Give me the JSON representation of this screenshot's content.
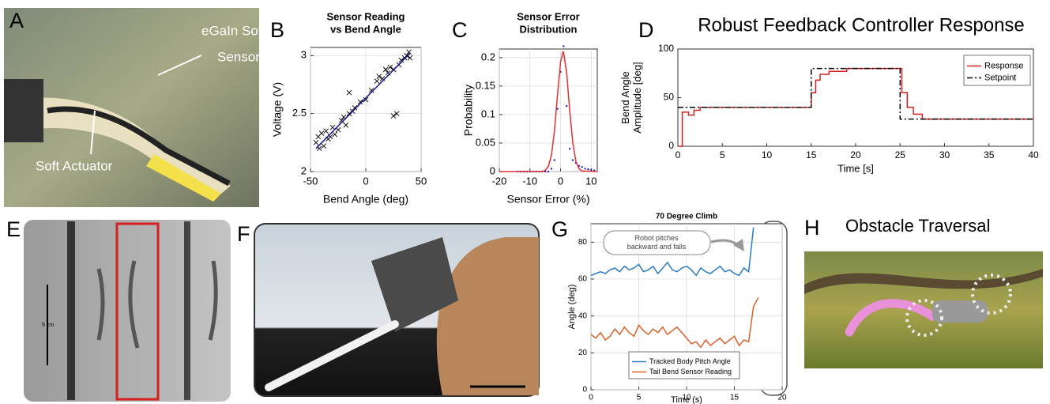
{
  "panel_labels": [
    "A",
    "B",
    "C",
    "D",
    "E",
    "F",
    "G",
    "H"
  ],
  "photo_a": {
    "sensor_label": [
      "eGaIn Soft",
      "Sensor"
    ],
    "actuator_label": "Soft Actuator"
  },
  "photo_e": {
    "scale_label": "5 cm"
  },
  "panel_h": {
    "title": "Obstacle Traversal"
  },
  "chart_data": [
    {
      "type": "scatter",
      "title": [
        "Sensor Reading",
        "vs Bend Angle"
      ],
      "xlabel": "Bend Angle (deg)",
      "ylabel": "Voltage (V)",
      "xlim": [
        -50,
        50
      ],
      "ylim": [
        2,
        3.07
      ],
      "xticks": [
        -50,
        0,
        50
      ],
      "yticks": [
        2,
        2.5,
        3
      ],
      "grid": true,
      "series": [
        {
          "color": "#000000",
          "marker": "x",
          "line": false,
          "x": [
            -45,
            -43,
            -42,
            -40,
            -38,
            -36,
            -34,
            -32,
            -30,
            -28,
            -25,
            -22,
            -20,
            -18,
            -15,
            -12,
            -10,
            -5,
            0,
            5,
            10,
            12,
            15,
            18,
            20,
            22,
            25,
            25,
            28,
            30,
            32,
            35,
            37,
            39,
            40,
            -15
          ],
          "values": [
            2.25,
            2.3,
            2.2,
            2.33,
            2.22,
            2.35,
            2.28,
            2.3,
            2.38,
            2.32,
            2.36,
            2.44,
            2.47,
            2.4,
            2.5,
            2.52,
            2.55,
            2.6,
            2.62,
            2.7,
            2.78,
            2.82,
            2.8,
            2.88,
            2.85,
            2.9,
            2.88,
            2.48,
            2.5,
            2.92,
            2.96,
            2.98,
            3.0,
            3.03,
            2.98,
            2.68
          ]
        },
        {
          "color": "#1a1a8c",
          "line": true,
          "x": [
            -45,
            40
          ],
          "values": [
            2.2,
            3.02
          ]
        }
      ]
    },
    {
      "type": "line",
      "title": [
        "Sensor Error",
        "Distribution"
      ],
      "xlabel": "Sensor Error (%)",
      "ylabel": "Probability",
      "xlim": [
        -20,
        12
      ],
      "ylim": [
        0,
        0.215
      ],
      "xticks": [
        -20,
        -10,
        0,
        10
      ],
      "yticks": [
        0,
        0.05,
        0.1,
        0.15,
        0.2
      ],
      "grid": true,
      "series": [
        {
          "color": "#2222cc",
          "marker": "dot",
          "line": false,
          "x": [
            -14,
            -13,
            -12,
            -11,
            -10,
            -9,
            -8,
            -7,
            -6,
            -5,
            -4,
            -3,
            -2,
            -1,
            0,
            1,
            2,
            3,
            4,
            5,
            6,
            7,
            8,
            9,
            10,
            11
          ],
          "values": [
            0,
            0,
            0,
            0,
            0,
            0,
            0,
            0,
            0,
            0,
            0,
            0.005,
            0.02,
            0.11,
            0.175,
            0.22,
            0.115,
            0.04,
            0.02,
            0.015,
            0.01,
            0.008,
            0.005,
            0.004,
            0.003,
            0.002
          ]
        },
        {
          "color": "#e03030",
          "line": true,
          "x": [
            -20,
            -6,
            -5,
            -4,
            -3,
            -2,
            -1,
            0,
            0.8,
            1,
            2,
            3,
            4,
            5,
            6,
            7,
            12
          ],
          "values": [
            0,
            0.0003,
            0.002,
            0.009,
            0.028,
            0.071,
            0.134,
            0.192,
            0.21,
            0.209,
            0.172,
            0.107,
            0.051,
            0.018,
            0.005,
            0.001,
            0
          ]
        }
      ]
    },
    {
      "type": "line",
      "title": "Robust Feedback Controller Response",
      "xlabel": "Time [s]",
      "ylabel": [
        "Bend Angle",
        "Amplitude [deg]"
      ],
      "xlim": [
        0,
        40
      ],
      "ylim": [
        0,
        100
      ],
      "xticks": [
        0,
        5,
        10,
        15,
        20,
        25,
        30,
        35,
        40
      ],
      "yticks": [
        0,
        50,
        100
      ],
      "grid": false,
      "legend": "upper right",
      "series": [
        {
          "name": "Response",
          "color": "#d62020",
          "line": true,
          "x": [
            0,
            0.5,
            0.5,
            1.2,
            1.2,
            1.8,
            1.8,
            2.5,
            2.5,
            15,
            15,
            15.5,
            15.5,
            16,
            16,
            17,
            17,
            19,
            19,
            25.2,
            25.2,
            25.8,
            25.8,
            26.5,
            26.5,
            27.5,
            27.5,
            40
          ],
          "values": [
            0,
            0,
            35,
            35,
            32,
            32,
            37,
            37,
            40,
            40,
            55,
            55,
            68,
            68,
            74,
            74,
            77,
            77,
            80,
            80,
            55,
            55,
            40,
            40,
            33,
            33,
            28,
            28
          ]
        },
        {
          "name": "Setpoint",
          "color": "#000000",
          "line": true,
          "dash": "dashdot",
          "x": [
            0,
            15,
            15,
            25,
            25,
            40
          ],
          "values": [
            40,
            40,
            80,
            80,
            28,
            28
          ]
        }
      ]
    },
    {
      "type": "line",
      "title": "70 Degree Climb",
      "xlabel": "Time (s)",
      "ylabel": "Angle (deg)",
      "xlim": [
        0,
        20
      ],
      "ylim": [
        0,
        90
      ],
      "xticks": [
        0,
        5,
        10,
        15,
        20
      ],
      "yticks": [
        0,
        20,
        40,
        60,
        80
      ],
      "grid": true,
      "legend": "lower left",
      "annotation": [
        "Robot pitches",
        "backward and falls"
      ],
      "series": [
        {
          "name": "Tracked Body Pitch Angle",
          "color": "#2a7bc0",
          "line": true,
          "x": [
            0,
            0.5,
            1,
            1.5,
            2,
            2.5,
            3,
            3.5,
            4,
            4.5,
            5,
            5.5,
            6,
            6.5,
            7,
            7.5,
            8,
            8.5,
            9,
            9.5,
            10,
            10.5,
            11,
            11.5,
            12,
            12.5,
            13,
            13.5,
            14,
            14.5,
            15,
            15.5,
            16,
            16.5,
            17
          ],
          "values": [
            62,
            63,
            64,
            63,
            65,
            66,
            64,
            67,
            65,
            66,
            68,
            64,
            65,
            67,
            63,
            66,
            69,
            65,
            64,
            66,
            67,
            65,
            62,
            66,
            64,
            63,
            65,
            67,
            64,
            65,
            63,
            62,
            66,
            64,
            88
          ]
        },
        {
          "name": "Tail Bend Sensor Reading",
          "color": "#d9622b",
          "line": true,
          "x": [
            0,
            0.5,
            1,
            1.5,
            2,
            2.5,
            3,
            3.5,
            4,
            4.5,
            5,
            5.5,
            6,
            6.5,
            7,
            7.5,
            8,
            8.5,
            9,
            9.5,
            10,
            10.5,
            11,
            11.5,
            12,
            12.5,
            13,
            13.5,
            14,
            14.5,
            15,
            15.5,
            16,
            16.5,
            17,
            17.5
          ],
          "values": [
            30,
            28,
            31,
            27,
            29,
            33,
            30,
            34,
            31,
            29,
            35,
            32,
            30,
            33,
            31,
            34,
            30,
            32,
            34,
            31,
            28,
            25,
            26,
            23,
            27,
            24,
            26,
            28,
            25,
            27,
            29,
            24,
            27,
            26,
            45,
            50
          ]
        }
      ]
    }
  ]
}
